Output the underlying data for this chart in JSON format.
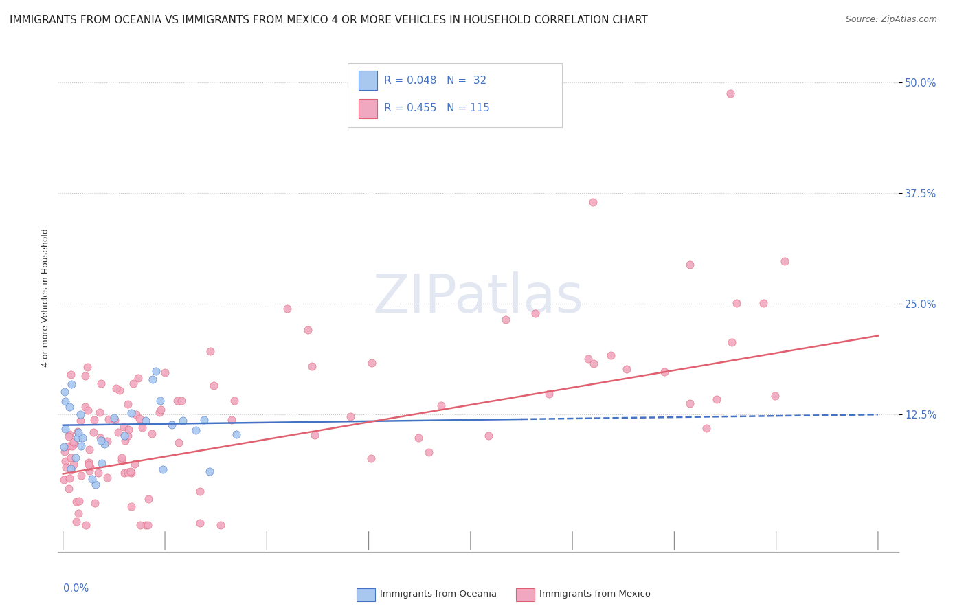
{
  "title": "IMMIGRANTS FROM OCEANIA VS IMMIGRANTS FROM MEXICO 4 OR MORE VEHICLES IN HOUSEHOLD CORRELATION CHART",
  "source": "Source: ZipAtlas.com",
  "ylabel": "4 or more Vehicles in Household",
  "color_oceania": "#a8c8f0",
  "color_mexico": "#f0a8c0",
  "line_color_oceania": "#4472c4",
  "line_color_mexico": "#e06070",
  "background_color": "#ffffff",
  "title_fontsize": 11,
  "legend_fontsize": 11,
  "ytick_color": "#4472c4",
  "legend_R_oceania": "R = 0.048",
  "legend_N_oceania": "N =  32",
  "legend_R_mexico": "R = 0.455",
  "legend_N_mexico": "N = 115"
}
